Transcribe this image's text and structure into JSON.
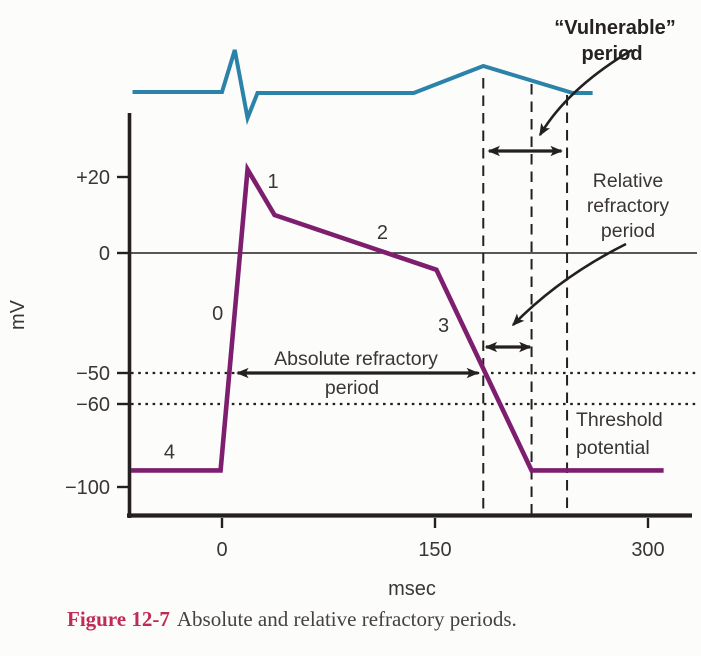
{
  "figure": {
    "caption_label": "Figure 12-7",
    "caption_text": "Absolute and relative refractory periods."
  },
  "colors": {
    "ecg_trace": "#2b83a9",
    "action_potential_trace": "#7d1e6e",
    "ink": "#242021",
    "label_text": "#3a3637",
    "caption_label": "#c02a56",
    "caption_text": "#454041",
    "background": "#fcfcfa"
  },
  "chart_data": {
    "type": "line",
    "title": "",
    "xlabel": "msec",
    "ylabel": "mV",
    "x_ticks": [
      0,
      150,
      300
    ],
    "y_ticks": [
      {
        "label": "+20",
        "mV": 20
      },
      {
        "label": "0",
        "mV": 0
      },
      {
        "label": "−50",
        "mV": -50
      },
      {
        "label": "−60",
        "mV": -60
      },
      {
        "label": "−100",
        "mV": -100
      }
    ],
    "xlim_ms": [
      -65,
      315
    ],
    "ylim_mV": [
      -100,
      25
    ],
    "grid": "off",
    "series": [
      {
        "name": "ecg-trace",
        "kind": "ecg",
        "baseline_amp": 0,
        "points": [
          {
            "ms": -63,
            "amp": 0
          },
          {
            "ms": 0,
            "amp": 0
          },
          {
            "ms": 9,
            "amp": 42
          },
          {
            "ms": 18,
            "amp": -26
          },
          {
            "ms": 25,
            "amp": -1
          },
          {
            "ms": 135,
            "amp": -1
          },
          {
            "ms": 184,
            "amp": 26
          },
          {
            "ms": 247,
            "amp": -1
          },
          {
            "ms": 261,
            "amp": -1
          }
        ]
      },
      {
        "name": "action-potential",
        "kind": "mv",
        "points": [
          {
            "ms": -64,
            "mV": -92
          },
          {
            "ms": -1,
            "mV": -92
          },
          {
            "ms": 18,
            "mV": 22
          },
          {
            "ms": 37,
            "mV": 10
          },
          {
            "ms": 151,
            "mV": -7
          },
          {
            "ms": 218,
            "mV": -92
          },
          {
            "ms": 311,
            "mV": -92
          }
        ]
      }
    ],
    "phase_labels": [
      {
        "text": "0",
        "ms": -3,
        "mV": -25
      },
      {
        "text": "1",
        "ms": 36,
        "mV": 19
      },
      {
        "text": "2",
        "ms": 113,
        "mV": 5.5
      },
      {
        "text": "3",
        "ms": 156,
        "mV": -30
      },
      {
        "text": "4",
        "ms": -37,
        "mV": -83
      }
    ],
    "reference_lines": {
      "zero_mV_line": 0,
      "threshold_dotted_mV": [
        -50,
        -60
      ],
      "dashed_guides_ms": [
        184,
        218,
        243
      ]
    },
    "annotations": {
      "vulnerable": {
        "lines": [
          "“Vulnerable”",
          "period"
        ],
        "arrow_span_ms": [
          188,
          239
        ]
      },
      "relative_refractory": {
        "lines": [
          "Relative",
          "refractory",
          "period"
        ],
        "arrow_span_ms": [
          186,
          217
        ]
      },
      "absolute_refractory": {
        "lines": [
          "Absolute refractory",
          "period"
        ],
        "arrow_span_ms": [
          11,
          180
        ],
        "arrow_at_mV": -50
      },
      "threshold": {
        "lines": [
          "Threshold",
          "potential"
        ]
      }
    }
  }
}
